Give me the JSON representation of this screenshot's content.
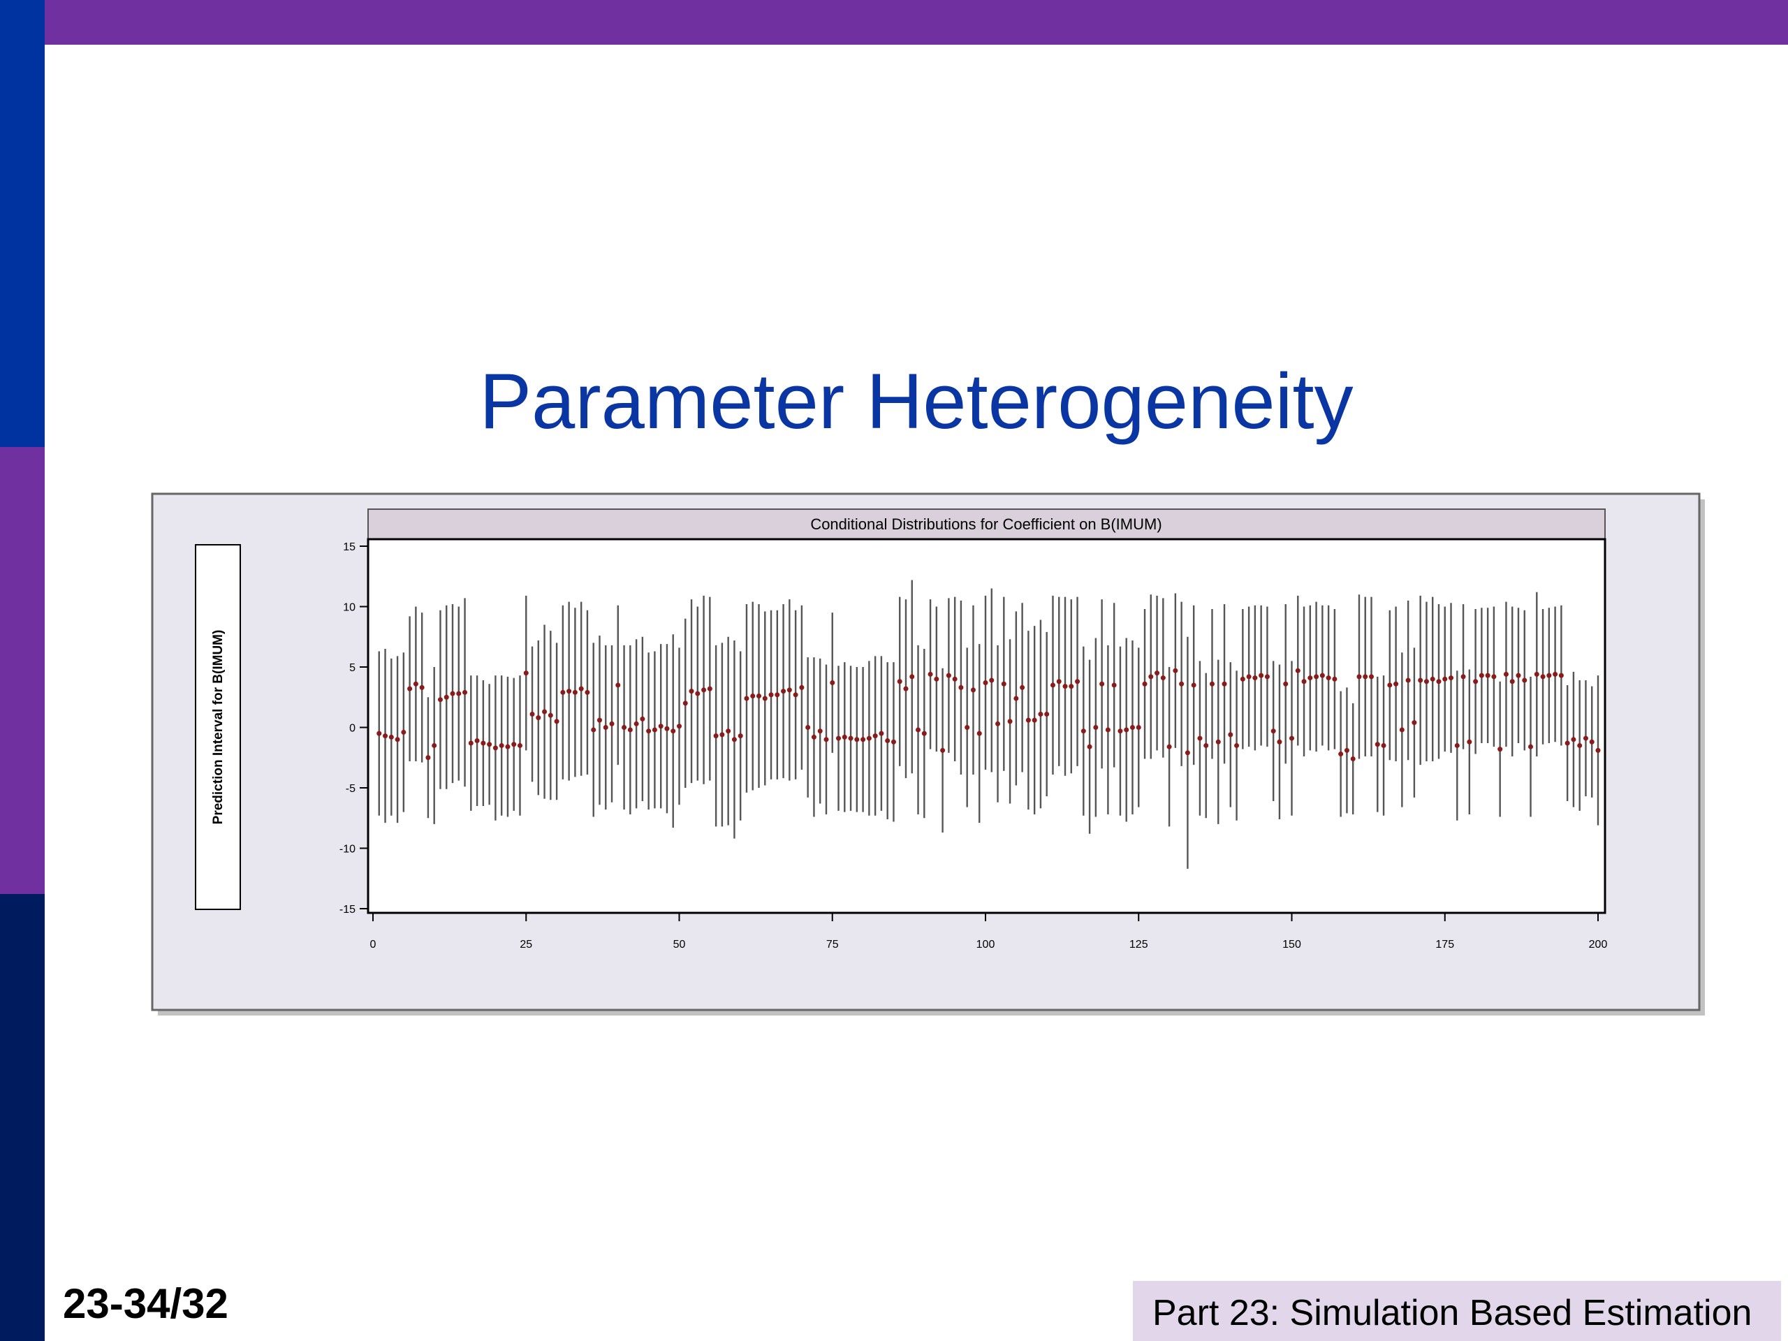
{
  "slide_title": "Parameter Heterogeneity",
  "page_number": "23-34/32",
  "footer": "Part 23: Simulation Based Estimation",
  "chart_data": {
    "type": "errorbar",
    "title": "Conditional Distributions for Coefficient on B(IMUM)",
    "y_label": "Prediction Interval for B(IMUM)",
    "line_color": "#555555",
    "color": "#8b1a1a",
    "xlim": [
      0,
      200
    ],
    "ylim": [
      -15,
      15
    ],
    "xticks": [
      0,
      25,
      50,
      75,
      100,
      125,
      150,
      175,
      200
    ],
    "yticks": [
      -15,
      -10,
      -5,
      0,
      5,
      10,
      15
    ],
    "x": [
      1,
      2,
      3,
      4,
      5,
      6,
      7,
      8,
      9,
      10,
      11,
      12,
      13,
      14,
      15,
      16,
      17,
      18,
      19,
      20,
      21,
      22,
      23,
      24,
      25,
      26,
      27,
      28,
      29,
      30,
      31,
      32,
      33,
      34,
      35,
      36,
      37,
      38,
      39,
      40,
      41,
      42,
      43,
      44,
      45,
      46,
      47,
      48,
      49,
      50,
      51,
      52,
      53,
      54,
      55,
      56,
      57,
      58,
      59,
      60,
      61,
      62,
      63,
      64,
      65,
      66,
      67,
      68,
      69,
      70,
      71,
      72,
      73,
      74,
      75,
      76,
      77,
      78,
      79,
      80,
      81,
      82,
      83,
      84,
      85,
      86,
      87,
      88,
      89,
      90,
      91,
      92,
      93,
      94,
      95,
      96,
      97,
      98,
      99,
      100,
      101,
      102,
      103,
      104,
      105,
      106,
      107,
      108,
      109,
      110,
      111,
      112,
      113,
      114,
      115,
      116,
      117,
      118,
      119,
      120,
      121,
      122,
      123,
      124,
      125,
      126,
      127,
      128,
      129,
      130,
      131,
      132,
      133,
      134,
      135,
      136,
      137,
      138,
      139,
      140,
      141,
      142,
      143,
      144,
      145,
      146,
      147,
      148,
      149,
      150,
      151,
      152,
      153,
      154,
      155,
      156,
      157,
      158,
      159,
      160,
      161,
      162,
      163,
      164,
      165,
      166,
      167,
      168,
      169,
      170,
      171,
      172,
      173,
      174,
      175,
      176,
      177,
      178,
      179,
      180,
      181,
      182,
      183,
      184,
      185,
      186,
      187,
      188,
      189,
      190,
      191,
      192,
      193,
      194,
      195,
      196,
      197,
      198,
      199,
      200
    ],
    "values": [
      -0.5,
      -0.7,
      -0.8,
      -1,
      -0.4,
      3.2,
      3.6,
      3.3,
      -2.5,
      -1.5,
      2.3,
      2.5,
      2.8,
      2.8,
      2.9,
      -1.3,
      -1.1,
      -1.3,
      -1.4,
      -1.7,
      -1.5,
      -1.6,
      -1.4,
      -1.5,
      4.5,
      1.1,
      0.8,
      1.3,
      1.0,
      0.5,
      2.9,
      3.0,
      2.9,
      3.2,
      2.9,
      -0.2,
      0.6,
      0.0,
      0.3,
      3.5,
      0,
      -0.2,
      0.3,
      0.7,
      -0.3,
      -0.2,
      0.1,
      -0.1,
      -0.3,
      0.1,
      2.0,
      3.0,
      2.8,
      3.1,
      3.2,
      -0.7,
      -0.6,
      -0.3,
      -1.0,
      -0.7,
      2.4,
      2.6,
      2.6,
      2.4,
      2.7,
      2.7,
      3.0,
      3.1,
      2.7,
      3.3,
      0,
      -0.8,
      -0.3,
      -1,
      3.7,
      -0.9,
      -0.8,
      -0.9,
      -1,
      -1,
      -0.9,
      -0.7,
      -0.5,
      -1.1,
      -1.2,
      3.8,
      3.2,
      4.2,
      -0.2,
      -0.5,
      4.4,
      4.0,
      -1.9,
      4.3,
      4.0,
      3.3,
      0.0,
      3.1,
      -0.5,
      3.7,
      3.9,
      0.3,
      3.6,
      0.5,
      2.4,
      3.3,
      0.6,
      0.6,
      1.1,
      1.1,
      3.5,
      3.8,
      3.4,
      3.4,
      3.8,
      -0.3,
      -1.6,
      0,
      3.6,
      -0.2,
      3.5,
      -0.3,
      -0.2,
      0,
      0,
      3.6,
      4.2,
      4.5,
      4.1,
      -1.6,
      4.7,
      3.6,
      -2.1,
      3.5,
      -0.9,
      -1.5,
      3.6,
      -1.2,
      3.6,
      -0.6,
      -1.5,
      4.0,
      4.2,
      4.1,
      4.3,
      4.2,
      -0.3,
      -1.2,
      3.6,
      -0.9,
      4.7,
      3.8,
      4.1,
      4.2,
      4.3,
      4.1,
      4.0,
      -2.2,
      -1.9,
      -2.6,
      4.2,
      4.2,
      4.2,
      -1.4,
      -1.5,
      3.5,
      3.6,
      -0.2,
      3.9,
      0.4,
      3.9,
      3.8,
      4.0,
      3.8,
      4.0,
      4.1,
      -1.5,
      4.2,
      -1.2,
      3.8,
      4.3,
      4.3,
      4.2,
      -1.8,
      4.4,
      3.8,
      4.3,
      3.9,
      -1.6,
      4.4,
      4.2,
      4.3,
      4.4,
      4.3,
      -1.3,
      -1.0,
      -1.5,
      -0.9,
      -1.2,
      -1.9
    ],
    "errors": [
      6.8,
      7.2,
      6.5,
      6.9,
      6.6,
      6.0,
      6.4,
      6.2,
      5.0,
      6.5,
      7.4,
      7.6,
      7.4,
      7.2,
      7.8,
      5.6,
      5.4,
      5.2,
      5.0,
      6.0,
      5.8,
      5.8,
      5.5,
      5.8,
      6.4,
      5.6,
      6.4,
      7.2,
      7.0,
      6.5,
      7.2,
      7.4,
      7.0,
      7.2,
      6.8,
      7.2,
      7.0,
      6.8,
      6.5,
      6.6,
      6.8,
      7.0,
      7.0,
      6.8,
      6.5,
      6.5,
      6.8,
      7.0,
      8.0,
      6.5,
      7.0,
      7.6,
      7.2,
      7.8,
      7.6,
      7.5,
      7.6,
      7.8,
      8.2,
      7.0,
      7.8,
      7.8,
      7.6,
      7.2,
      7.0,
      7.0,
      7.2,
      7.5,
      7.0,
      6.8,
      5.8,
      6.6,
      6.0,
      6.2,
      5.8,
      6.0,
      6.2,
      6.0,
      6.0,
      6.0,
      6.4,
      6.6,
      6.4,
      6.5,
      6.6,
      7.0,
      7.4,
      8.0,
      7.0,
      7.0,
      6.2,
      6.0,
      6.8,
      6.4,
      6.8,
      7.2,
      6.6,
      7.0,
      7.4,
      7.2,
      7.6,
      6.5,
      7.2,
      6.8,
      7.2,
      7.0,
      7.4,
      7.8,
      7.8,
      6.8,
      7.4,
      7.0,
      7.4,
      7.2,
      7.0,
      7.0,
      7.2,
      7.4,
      7.0,
      7.0,
      6.8,
      7.0,
      7.6,
      7.2,
      6.6,
      6.2,
      6.8,
      6.4,
      6.6,
      6.6,
      6.4,
      6.8,
      9.6,
      6.6,
      6.4,
      6.0,
      6.2,
      6.8,
      6.6,
      6.0,
      6.2,
      5.8,
      5.8,
      6.0,
      5.8,
      5.8,
      5.8,
      6.4,
      6.6,
      6.4,
      6.2,
      6.2,
      6.0,
      6.2,
      5.8,
      6.0,
      5.8,
      5.2,
      5.2,
      4.6,
      6.8,
      6.6,
      6.6,
      5.6,
      5.8,
      6.2,
      6.4,
      6.4,
      6.6,
      6.2,
      7.0,
      6.6,
      6.8,
      6.4,
      6.0,
      6.2,
      6.2,
      6.0,
      6.0,
      6.0,
      5.6,
      5.6,
      5.8,
      5.6,
      6.0,
      6.2,
      5.6,
      5.8,
      5.8,
      6.8,
      5.6,
      5.6,
      5.6,
      5.8,
      4.8,
      5.6,
      5.4,
      4.8,
      4.6,
      6.2
    ]
  }
}
